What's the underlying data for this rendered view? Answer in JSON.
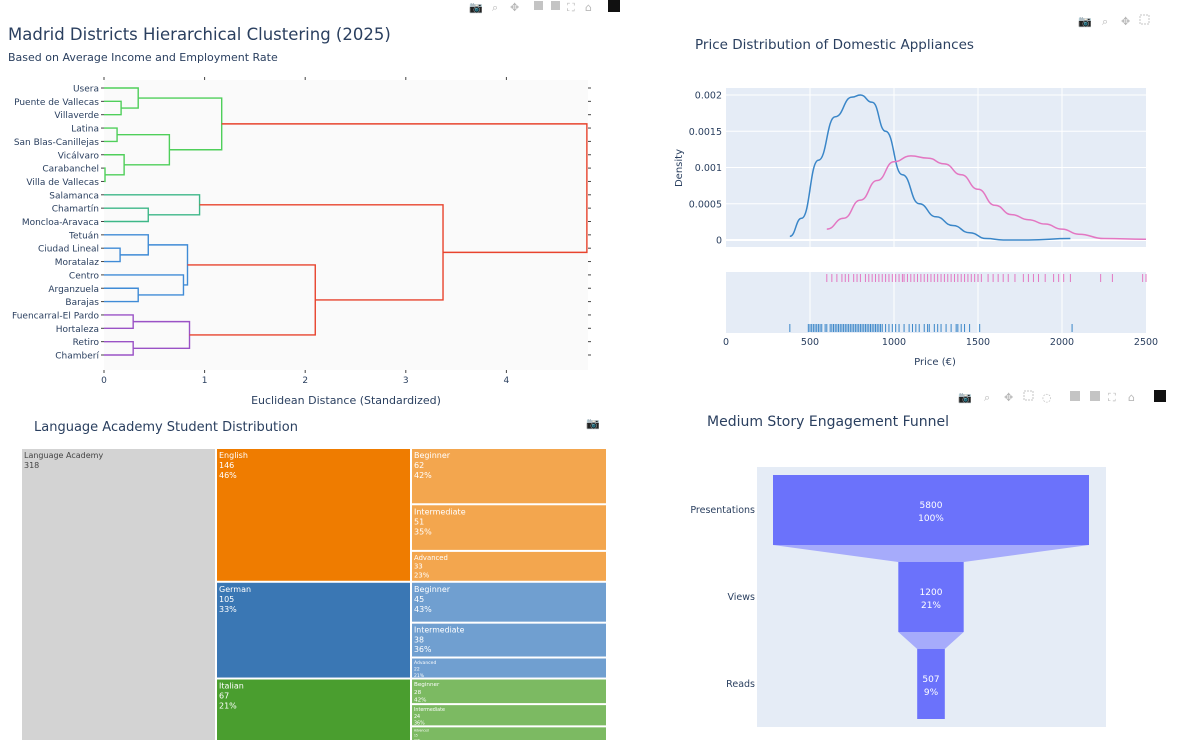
{
  "dendrogram": {
    "title": "Madrid Districts Hierarchical Clustering (2025)",
    "subtitle": "Based on Average Income and Employment Rate",
    "xlabel": "Euclidean Distance (Standardized)",
    "toolbar_icons": [
      "camera-icon",
      "zoom-icon",
      "pan-icon",
      "zoom-in-icon",
      "zoom-out-icon",
      "autoscale-icon",
      "home-icon",
      "plotly-logo-icon"
    ]
  },
  "density": {
    "title": "Price Distribution of Domestic Appliances",
    "toolbar_icons": [
      "camera-icon",
      "zoom-icon",
      "pan-icon",
      "box-select-icon"
    ]
  },
  "treemap": {
    "title": "Language Academy Student Distribution",
    "toolbar_icons": [
      "camera-icon"
    ]
  },
  "funnel": {
    "title": "Medium Story Engagement Funnel",
    "toolbar_icons": [
      "camera-icon",
      "zoom-icon",
      "pan-icon",
      "box-select-icon",
      "lasso-icon",
      "zoom-in-icon",
      "zoom-out-icon",
      "autoscale-icon",
      "home-icon",
      "plotly-logo-icon"
    ]
  },
  "chart_data": [
    {
      "type": "dendrogram",
      "orientation": "left",
      "leaves": [
        "Usera",
        "Puente de Vallecas",
        "Villaverde",
        "Latina",
        "San Blas-Canillejas",
        "Vicálvaro",
        "Carabanchel",
        "Villa de Vallecas",
        "Salamanca",
        "Chamartín",
        "Moncloa-Aravaca",
        "Tetuán",
        "Ciudad Lineal",
        "Moratalaz",
        "Centro",
        "Arganzuela",
        "Barajas",
        "Fuencarral-El Pardo",
        "Hortaleza",
        "Retiro",
        "Chamberí"
      ],
      "merges": [
        {
          "a": 1,
          "b": 2,
          "d": 0.17,
          "color": "#4fcf5a"
        },
        {
          "a": 0,
          "b": "m0",
          "d": 0.34,
          "color": "#4fcf5a"
        },
        {
          "a": 3,
          "b": 4,
          "d": 0.13,
          "color": "#4fcf5a"
        },
        {
          "a": 6,
          "b": 7,
          "d": 0.01,
          "color": "#4fcf5a"
        },
        {
          "a": 5,
          "b": "m3",
          "d": 0.2,
          "color": "#4fcf5a"
        },
        {
          "a": "m2",
          "b": "m4",
          "d": 0.65,
          "color": "#4fcf5a"
        },
        {
          "a": "m1",
          "b": "m5",
          "d": 1.17,
          "color": "#4fcf5a"
        },
        {
          "a": 9,
          "b": 10,
          "d": 0.44,
          "color": "#3db788"
        },
        {
          "a": 8,
          "b": "m7",
          "d": 0.95,
          "color": "#3db788"
        },
        {
          "a": 12,
          "b": 13,
          "d": 0.16,
          "color": "#3f8bd6"
        },
        {
          "a": 11,
          "b": "m9",
          "d": 0.44,
          "color": "#3f8bd6"
        },
        {
          "a": 15,
          "b": 16,
          "d": 0.34,
          "color": "#3f8bd6"
        },
        {
          "a": 14,
          "b": "m11",
          "d": 0.79,
          "color": "#3f8bd6"
        },
        {
          "a": "m10",
          "b": "m12",
          "d": 0.83,
          "color": "#3f8bd6"
        },
        {
          "a": 17,
          "b": 18,
          "d": 0.29,
          "color": "#9a52c6"
        },
        {
          "a": 19,
          "b": 20,
          "d": 0.29,
          "color": "#9a52c6"
        },
        {
          "a": "m14",
          "b": "m15",
          "d": 0.85,
          "color": "#9a52c6"
        },
        {
          "a": "m13",
          "b": "m16",
          "d": 2.1,
          "color": "#e8432d"
        },
        {
          "a": "m8",
          "b": "m17",
          "d": 3.37,
          "color": "#e8432d"
        },
        {
          "a": "m6",
          "b": "m18",
          "d": 4.8,
          "color": "#e8432d"
        }
      ],
      "xlabel": "Euclidean Distance (Standardized)",
      "xticks": [
        "0",
        "1",
        "2",
        "3",
        "4"
      ],
      "xlim": [
        0,
        4.83
      ]
    },
    {
      "type": "line",
      "subtype": "distplot",
      "title": "Price Distribution of Domestic Appliances",
      "xlabel": "Price (€)",
      "ylabel": "Density",
      "xlim": [
        0,
        2500
      ],
      "ylim": [
        0,
        0.002
      ],
      "xticks": [
        "0",
        "500",
        "1000",
        "1500",
        "2000",
        "2500"
      ],
      "yticks": [
        "0",
        "0.0005",
        "0.001",
        "0.0015",
        "0.002"
      ],
      "series": [
        {
          "color": "#3a86c8",
          "x": [
            380,
            450,
            550,
            650,
            750,
            800,
            870,
            950,
            1050,
            1150,
            1250,
            1350,
            1450,
            1550,
            1650,
            1800,
            2050
          ],
          "y": [
            5e-05,
            0.0003,
            0.0011,
            0.0017,
            0.00197,
            0.002,
            0.0019,
            0.0015,
            0.0009,
            0.0005,
            0.00032,
            0.0002,
            0.0001,
            2e-05,
            0.0,
            0.0,
            2e-05
          ],
          "rug": [
            380,
            490,
            500,
            510,
            520,
            530,
            540,
            550,
            560,
            570,
            590,
            600,
            620,
            630,
            640,
            650,
            660,
            670,
            680,
            690,
            700,
            710,
            720,
            730,
            740,
            750,
            760,
            770,
            780,
            790,
            800,
            810,
            820,
            830,
            840,
            850,
            860,
            870,
            880,
            890,
            900,
            910,
            920,
            930,
            950,
            970,
            990,
            1010,
            1030,
            1060,
            1090,
            1110,
            1130,
            1150,
            1180,
            1200,
            1210,
            1240,
            1260,
            1280,
            1310,
            1340,
            1370,
            1380,
            1400,
            1420,
            1450,
            1510,
            2060
          ]
        },
        {
          "color": "#e377c2",
          "x": [
            600,
            700,
            800,
            900,
            1000,
            1100,
            1200,
            1300,
            1400,
            1500,
            1600,
            1700,
            1800,
            1900,
            2000,
            2100,
            2250,
            2500
          ],
          "y": [
            0.00015,
            0.0003,
            0.00055,
            0.00082,
            0.00108,
            0.00116,
            0.00113,
            0.00105,
            0.0009,
            0.0007,
            0.00048,
            0.00035,
            0.00028,
            0.00022,
            0.00015,
            8e-05,
            2e-05,
            1e-05
          ],
          "rug": [
            600,
            630,
            660,
            690,
            710,
            730,
            760,
            780,
            800,
            830,
            850,
            870,
            890,
            910,
            930,
            950,
            970,
            990,
            1010,
            1030,
            1050,
            1060,
            1080,
            1100,
            1120,
            1140,
            1160,
            1180,
            1200,
            1220,
            1240,
            1260,
            1280,
            1300,
            1320,
            1340,
            1360,
            1380,
            1400,
            1420,
            1440,
            1460,
            1480,
            1500,
            1520,
            1560,
            1590,
            1620,
            1650,
            1680,
            1720,
            1770,
            1800,
            1830,
            1860,
            1900,
            1950,
            1980,
            2010,
            2050,
            2230,
            2300,
            2480,
            2500
          ]
        }
      ]
    },
    {
      "type": "treemap",
      "title": "Language Academy Student Distribution",
      "root": {
        "label": "Language Academy",
        "value": "318",
        "color": "#d3d3d3"
      },
      "children": [
        {
          "label": "English",
          "value": 146,
          "pct": "46%",
          "color": "#ef7c00",
          "light": "#f3a64e",
          "children": [
            {
              "label": "Beginner",
              "value": 62,
              "pct": "42%"
            },
            {
              "label": "Intermediate",
              "value": 51,
              "pct": "35%"
            },
            {
              "label": "Advanced",
              "value": 33,
              "pct": "23%"
            }
          ]
        },
        {
          "label": "German",
          "value": 105,
          "pct": "33%",
          "color": "#3a77b4",
          "light": "#709fd0",
          "children": [
            {
              "label": "Beginner",
              "value": 45,
              "pct": "43%"
            },
            {
              "label": "Intermediate",
              "value": 38,
              "pct": "36%"
            },
            {
              "label": "Advanced",
              "value": 22,
              "pct": "21%"
            }
          ]
        },
        {
          "label": "Italian",
          "value": 67,
          "pct": "21%",
          "color": "#4a9e2f",
          "light": "#7cba62",
          "children": [
            {
              "label": "Beginner",
              "value": 28,
              "pct": "42%"
            },
            {
              "label": "Intermediate",
              "value": 24,
              "pct": "36%"
            },
            {
              "label": "Advanced",
              "value": 15,
              "pct": "22%"
            }
          ]
        }
      ]
    },
    {
      "type": "funnel",
      "title": "Medium Story Engagement Funnel",
      "categories": [
        "Presentations",
        "Views",
        "Reads"
      ],
      "values": [
        5800,
        1200,
        507
      ],
      "labels": [
        [
          "5800",
          "100%"
        ],
        [
          "1200",
          "21%"
        ],
        [
          "507",
          "9%"
        ]
      ],
      "color": "#6b72fb",
      "connector_color": "#a6abfb"
    }
  ]
}
